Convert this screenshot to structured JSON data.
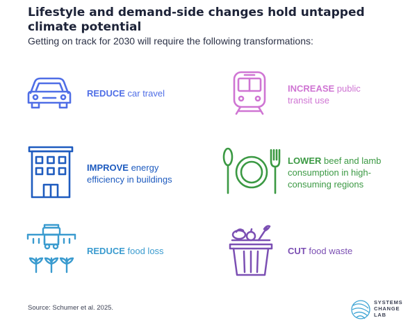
{
  "title": "Lifestyle and demand-side changes hold untapped climate potential",
  "subtitle": "Getting on track for 2030 will require the following transformations:",
  "items": [
    {
      "icon": "car-icon",
      "color": "#4f6ee6",
      "bold": "REDUCE",
      "rest": " car travel"
    },
    {
      "icon": "train-icon",
      "color": "#cf75d3",
      "bold": "INCREASE",
      "rest": " public transit use"
    },
    {
      "icon": "building-icon",
      "color": "#1e5bbf",
      "bold": "IMPROVE",
      "rest": " energy efficiency in buildings"
    },
    {
      "icon": "plate-icon",
      "color": "#3b9943",
      "bold": "LOWER",
      "rest": " beef and lamb consumption in high-consuming regions"
    },
    {
      "icon": "tractor-crops-icon",
      "color": "#3a9bcf",
      "bold": "REDUCE",
      "rest": " food loss"
    },
    {
      "icon": "food-basket-icon",
      "color": "#7b4fb3",
      "bold": "CUT",
      "rest": " food waste"
    }
  ],
  "source": "Source: Schumer et al. 2025.",
  "logo": {
    "line1": "SYSTEMS",
    "line2": "CHANGE",
    "line3": "LAB",
    "color": "#3ba3d4"
  }
}
